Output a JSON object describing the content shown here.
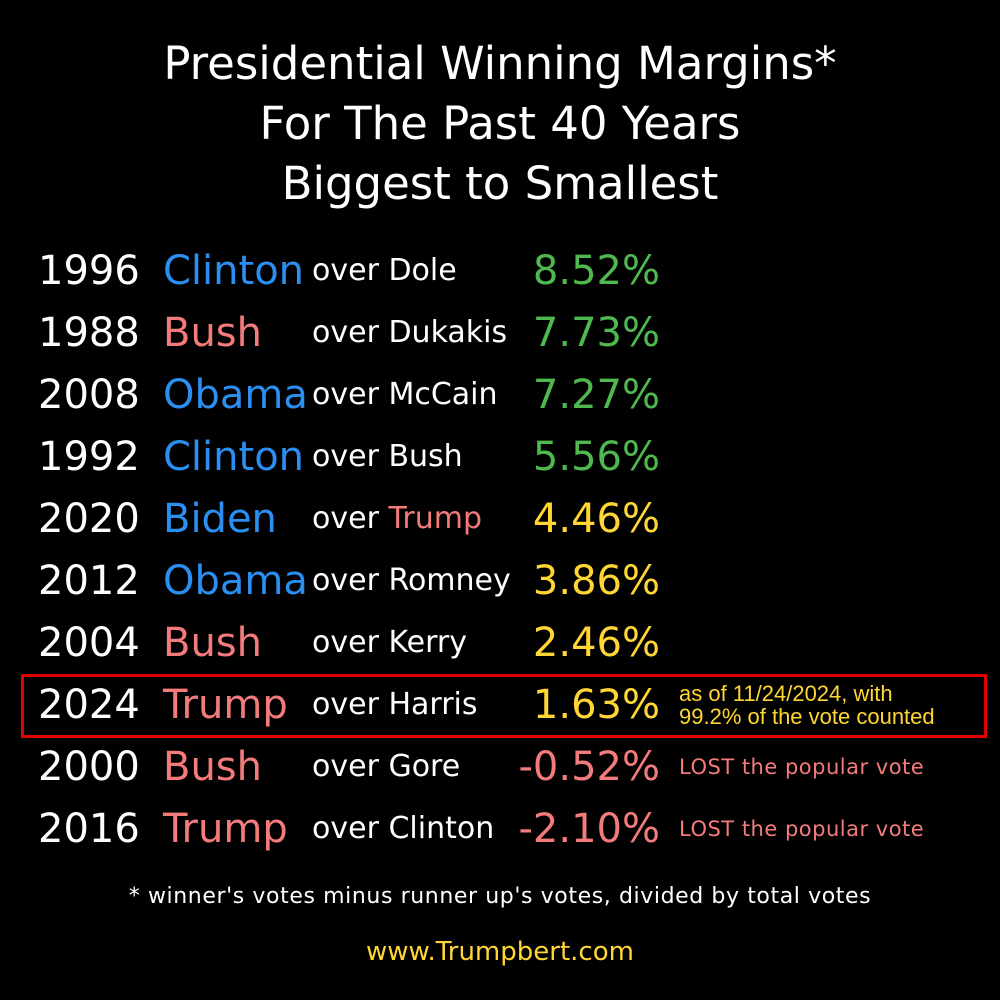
{
  "colors": {
    "background": "#000000",
    "democrat": "#2a8ff0",
    "republican": "#f47b7b",
    "margin_green": "#4fb84f",
    "margin_yellow": "#ffd633",
    "margin_red": "#f47b7b",
    "highlight_border": "#e30000"
  },
  "header": {
    "line1": "Presidential Winning Margins*",
    "line2": "For The Past 40 Years",
    "line3": "Biggest to Smallest"
  },
  "chart_data": {
    "type": "table",
    "title": "Presidential Winning Margins* For The Past 40 Years Biggest to Smallest",
    "rows": [
      {
        "year": "1996",
        "winner": "Clinton",
        "winner_party": "democrat",
        "over": "over",
        "opponent": "Dole",
        "opponent_party": "other",
        "margin_text": "8.52%",
        "margin": 8.52,
        "margin_color": "green",
        "note": ""
      },
      {
        "year": "1988",
        "winner": "Bush",
        "winner_party": "republican",
        "over": "over",
        "opponent": "Dukakis",
        "opponent_party": "other",
        "margin_text": "7.73%",
        "margin": 7.73,
        "margin_color": "green",
        "note": ""
      },
      {
        "year": "2008",
        "winner": "Obama",
        "winner_party": "democrat",
        "over": "over",
        "opponent": "McCain",
        "opponent_party": "other",
        "margin_text": "7.27%",
        "margin": 7.27,
        "margin_color": "green",
        "note": ""
      },
      {
        "year": "1992",
        "winner": "Clinton",
        "winner_party": "democrat",
        "over": "over",
        "opponent": "Bush",
        "opponent_party": "other",
        "margin_text": "5.56%",
        "margin": 5.56,
        "margin_color": "green",
        "note": ""
      },
      {
        "year": "2020",
        "winner": "Biden",
        "winner_party": "democrat",
        "over": "over",
        "opponent": "Trump",
        "opponent_party": "republican",
        "margin_text": "4.46%",
        "margin": 4.46,
        "margin_color": "yellow",
        "note": ""
      },
      {
        "year": "2012",
        "winner": "Obama",
        "winner_party": "democrat",
        "over": "over",
        "opponent": "Romney",
        "opponent_party": "other",
        "margin_text": "3.86%",
        "margin": 3.86,
        "margin_color": "yellow",
        "note": ""
      },
      {
        "year": "2004",
        "winner": "Bush",
        "winner_party": "republican",
        "over": "over",
        "opponent": "Kerry",
        "opponent_party": "other",
        "margin_text": "2.46%",
        "margin": 2.46,
        "margin_color": "yellow",
        "note": ""
      },
      {
        "year": "2024",
        "winner": "Trump",
        "winner_party": "republican",
        "over": "over",
        "opponent": "Harris",
        "opponent_party": "other",
        "margin_text": "1.63%",
        "margin": 1.63,
        "margin_color": "yellow",
        "note": "as of 11/24/2024, with",
        "note2": "99.2% of the vote counted",
        "highlighted": true
      },
      {
        "year": "2000",
        "winner": "Bush",
        "winner_party": "republican",
        "over": "over",
        "opponent": "Gore",
        "opponent_party": "other",
        "margin_text": "-0.52%",
        "margin": -0.52,
        "margin_color": "red",
        "note": "LOST the popular vote"
      },
      {
        "year": "2016",
        "winner": "Trump",
        "winner_party": "republican",
        "over": "over",
        "opponent": "Clinton",
        "opponent_party": "other",
        "margin_text": "-2.10%",
        "margin": -2.1,
        "margin_color": "red",
        "note": "LOST the popular vote"
      }
    ]
  },
  "footnote": "* winner's votes minus runner up's votes, divided by total votes",
  "website": "www.Trumpbert.com"
}
